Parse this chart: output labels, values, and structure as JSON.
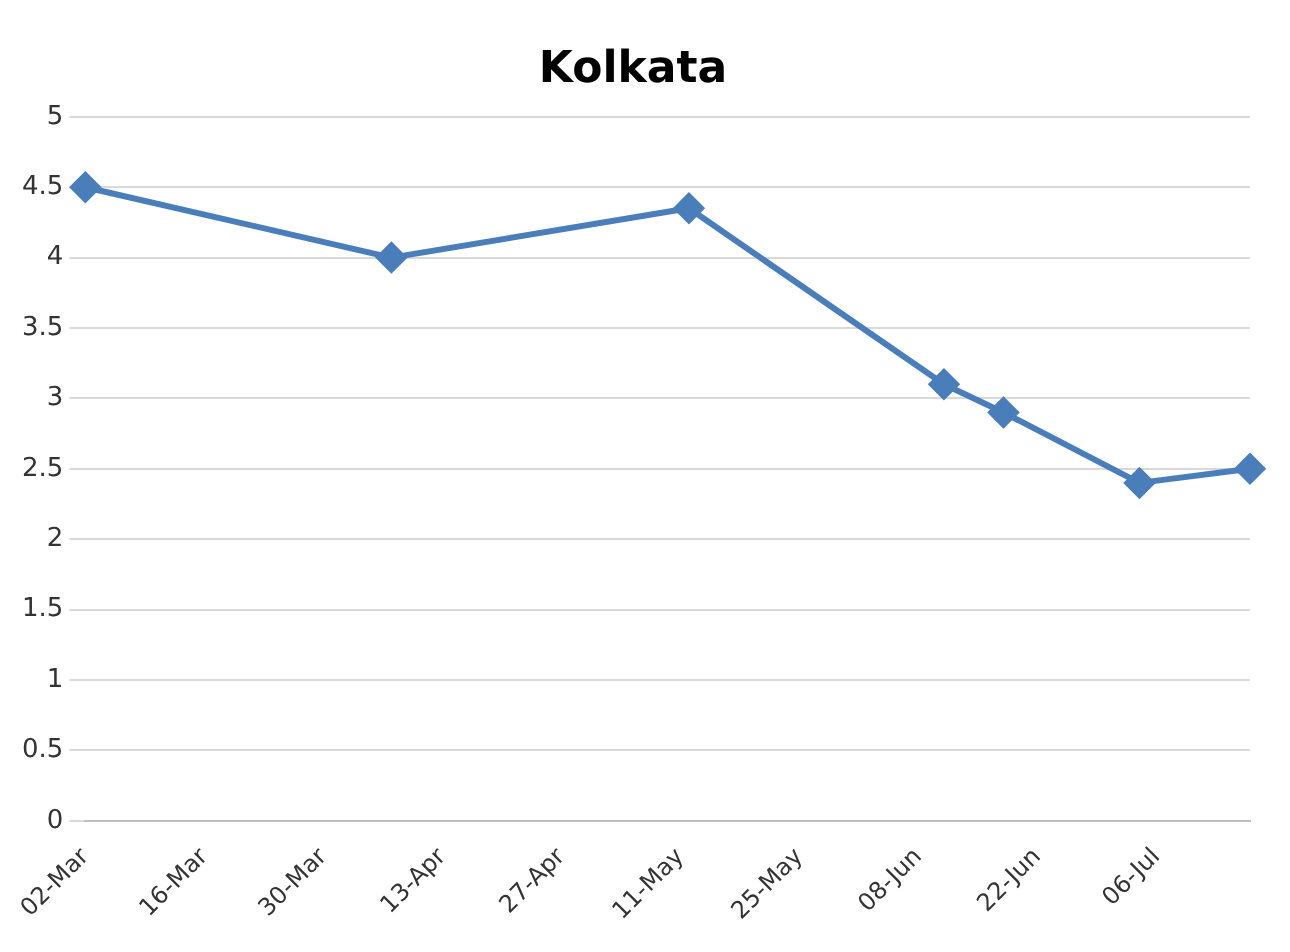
{
  "chart_data": {
    "type": "line",
    "title": "Kolkata",
    "x": [
      "--03-02",
      "--04-07",
      "--05-12",
      "--06-11",
      "--06-18",
      "--07-04",
      "--07-17"
    ],
    "series": [
      {
        "color": "#4a7ebb",
        "values": [
          4.5,
          4.0,
          4.35,
          3.1,
          2.9,
          2.4,
          2.5
        ]
      }
    ],
    "xlim": [
      "--03-02",
      "--07-17"
    ],
    "xticks": [
      {
        "value": "--03-02",
        "label": "02-Mar"
      },
      {
        "value": "--03-16",
        "label": "16-Mar"
      },
      {
        "value": "--03-30",
        "label": "30-Mar"
      },
      {
        "value": "--04-13",
        "label": "13-Apr"
      },
      {
        "value": "--04-27",
        "label": "27-Apr"
      },
      {
        "value": "--05-11",
        "label": "11-May"
      },
      {
        "value": "--05-25",
        "label": "25-May"
      },
      {
        "value": "--06-08",
        "label": "08-Jun"
      },
      {
        "value": "--06-22",
        "label": "22-Jun"
      },
      {
        "value": "--07-06",
        "label": "06-Jul"
      }
    ],
    "ylim": [
      0,
      5
    ],
    "yticks": [
      0,
      0.5,
      1,
      1.5,
      2,
      2.5,
      3,
      3.5,
      4,
      4.5,
      5
    ],
    "grid": "y",
    "legend": false,
    "marker": "diamond",
    "line_style": "solid"
  }
}
